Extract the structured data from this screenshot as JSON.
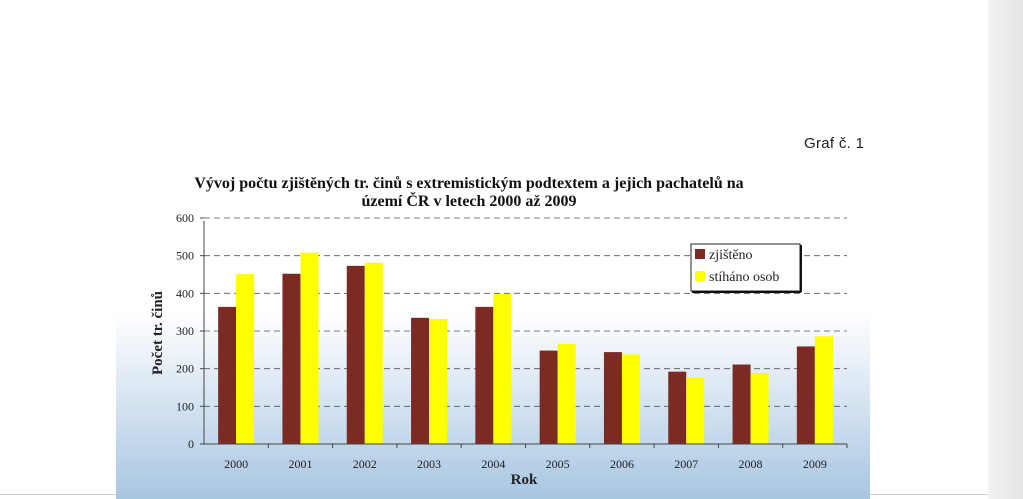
{
  "page": {
    "graf_label": "Graf č. 1"
  },
  "chart_data": {
    "type": "bar",
    "title_line1": "Vývoj počtu zjištěných tr. činů s extremistickým podtextem a jejich pachatelů na",
    "title_line2": "území ČR v letech 2000 až 2009",
    "xlabel": "Rok",
    "ylabel": "Počet tr. činů",
    "ylim": [
      0,
      600
    ],
    "yticks": [
      0,
      100,
      200,
      300,
      400,
      500,
      600
    ],
    "grid": true,
    "legend_position": "top-right",
    "categories": [
      "2000",
      "2001",
      "2002",
      "2003",
      "2004",
      "2005",
      "2006",
      "2007",
      "2008",
      "2009"
    ],
    "series": [
      {
        "name": "zjištěno",
        "color": "#7b2a24",
        "values": [
          364,
          452,
          473,
          335,
          364,
          248,
          244,
          192,
          211,
          259
        ]
      },
      {
        "name": "stíháno osob",
        "color": "#ffff00",
        "values": [
          451,
          508,
          481,
          332,
          398,
          266,
          238,
          176,
          189,
          286
        ]
      }
    ],
    "colors": {
      "plot_background_top": "#ffffff",
      "plot_background_bottom": "#a8c6e2"
    }
  }
}
